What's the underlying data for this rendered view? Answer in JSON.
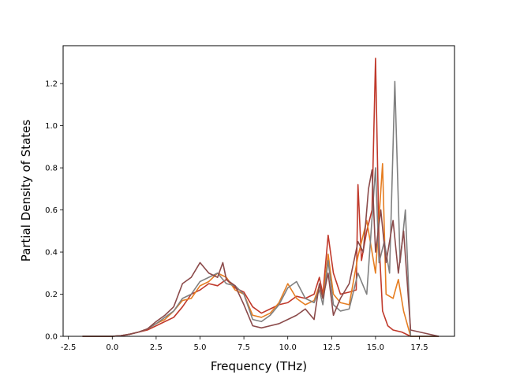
{
  "chart_data": {
    "type": "line",
    "title": "",
    "xlabel": "Frequency (THz)",
    "ylabel": "Partial Density of States",
    "xlim": [
      -2.8,
      19.5
    ],
    "ylim": [
      0.0,
      1.38
    ],
    "xticks": [
      -2.5,
      0.0,
      2.5,
      5.0,
      7.5,
      10.0,
      12.5,
      15.0,
      17.5
    ],
    "yticks": [
      0.0,
      0.2,
      0.4,
      0.6,
      0.8,
      1.0,
      1.2
    ],
    "grid": false,
    "legend": "none",
    "series": [
      {
        "color": "#c0392b",
        "points": [
          [
            -1.7,
            0
          ],
          [
            0,
            0
          ],
          [
            0.5,
            0.003
          ],
          [
            1,
            0.01
          ],
          [
            1.5,
            0.02
          ],
          [
            2,
            0.03
          ],
          [
            2.5,
            0.05
          ],
          [
            3,
            0.07
          ],
          [
            3.5,
            0.09
          ],
          [
            4,
            0.14
          ],
          [
            4.5,
            0.2
          ],
          [
            5,
            0.22
          ],
          [
            5.5,
            0.25
          ],
          [
            6,
            0.24
          ],
          [
            6.5,
            0.27
          ],
          [
            7,
            0.23
          ],
          [
            7.5,
            0.21
          ],
          [
            8,
            0.14
          ],
          [
            8.5,
            0.11
          ],
          [
            9,
            0.13
          ],
          [
            9.5,
            0.15
          ],
          [
            10,
            0.16
          ],
          [
            10.5,
            0.19
          ],
          [
            11,
            0.18
          ],
          [
            11.5,
            0.2
          ],
          [
            11.8,
            0.28
          ],
          [
            12,
            0.2
          ],
          [
            12.3,
            0.48
          ],
          [
            12.6,
            0.3
          ],
          [
            13,
            0.2
          ],
          [
            13.5,
            0.21
          ],
          [
            13.9,
            0.22
          ],
          [
            14,
            0.72
          ],
          [
            14.2,
            0.36
          ],
          [
            14.5,
            0.5
          ],
          [
            14.8,
            0.6
          ],
          [
            15,
            1.32
          ],
          [
            15.2,
            0.45
          ],
          [
            15.4,
            0.12
          ],
          [
            15.7,
            0.05
          ],
          [
            16,
            0.03
          ],
          [
            16.5,
            0.02
          ],
          [
            17,
            0
          ],
          [
            18.6,
            0
          ]
        ]
      },
      {
        "color": "#e67e22",
        "points": [
          [
            -1.7,
            0
          ],
          [
            0,
            0
          ],
          [
            0.5,
            0.003
          ],
          [
            1,
            0.01
          ],
          [
            1.5,
            0.02
          ],
          [
            2,
            0.035
          ],
          [
            2.5,
            0.06
          ],
          [
            3,
            0.08
          ],
          [
            3.5,
            0.12
          ],
          [
            4,
            0.17
          ],
          [
            4.5,
            0.18
          ],
          [
            5,
            0.24
          ],
          [
            5.5,
            0.26
          ],
          [
            6,
            0.3
          ],
          [
            6.5,
            0.28
          ],
          [
            7,
            0.22
          ],
          [
            7.5,
            0.2
          ],
          [
            8,
            0.1
          ],
          [
            8.5,
            0.09
          ],
          [
            9,
            0.11
          ],
          [
            9.5,
            0.16
          ],
          [
            10,
            0.25
          ],
          [
            10.5,
            0.18
          ],
          [
            11,
            0.15
          ],
          [
            11.5,
            0.17
          ],
          [
            11.8,
            0.24
          ],
          [
            12,
            0.18
          ],
          [
            12.3,
            0.39
          ],
          [
            12.6,
            0.2
          ],
          [
            13,
            0.16
          ],
          [
            13.5,
            0.15
          ],
          [
            14,
            0.38
          ],
          [
            14.5,
            0.55
          ],
          [
            14.8,
            0.4
          ],
          [
            15,
            0.3
          ],
          [
            15.4,
            0.82
          ],
          [
            15.6,
            0.2
          ],
          [
            16,
            0.18
          ],
          [
            16.3,
            0.27
          ],
          [
            16.6,
            0.12
          ],
          [
            17,
            0
          ],
          [
            18.6,
            0
          ]
        ]
      },
      {
        "color": "#808080",
        "points": [
          [
            -1.7,
            0
          ],
          [
            0,
            0
          ],
          [
            0.5,
            0.003
          ],
          [
            1,
            0.01
          ],
          [
            1.5,
            0.02
          ],
          [
            2,
            0.035
          ],
          [
            2.5,
            0.06
          ],
          [
            3,
            0.09
          ],
          [
            3.5,
            0.12
          ],
          [
            4,
            0.18
          ],
          [
            4.5,
            0.2
          ],
          [
            5,
            0.26
          ],
          [
            5.5,
            0.28
          ],
          [
            6,
            0.3
          ],
          [
            6.5,
            0.25
          ],
          [
            7,
            0.24
          ],
          [
            7.5,
            0.2
          ],
          [
            8,
            0.08
          ],
          [
            8.5,
            0.07
          ],
          [
            9,
            0.1
          ],
          [
            9.5,
            0.15
          ],
          [
            10,
            0.23
          ],
          [
            10.5,
            0.26
          ],
          [
            11,
            0.18
          ],
          [
            11.5,
            0.16
          ],
          [
            11.8,
            0.22
          ],
          [
            12,
            0.15
          ],
          [
            12.3,
            0.36
          ],
          [
            12.6,
            0.15
          ],
          [
            13,
            0.12
          ],
          [
            13.5,
            0.13
          ],
          [
            14,
            0.3
          ],
          [
            14.5,
            0.2
          ],
          [
            15,
            0.8
          ],
          [
            15.2,
            0.35
          ],
          [
            15.5,
            0.45
          ],
          [
            15.8,
            0.3
          ],
          [
            16.1,
            1.21
          ],
          [
            16.4,
            0.35
          ],
          [
            16.7,
            0.6
          ],
          [
            17,
            0
          ],
          [
            18.6,
            0
          ]
        ]
      },
      {
        "color": "#8b4a4a",
        "points": [
          [
            -1.7,
            0
          ],
          [
            0,
            0
          ],
          [
            0.5,
            0.003
          ],
          [
            1,
            0.01
          ],
          [
            1.5,
            0.02
          ],
          [
            2,
            0.035
          ],
          [
            2.5,
            0.07
          ],
          [
            3,
            0.1
          ],
          [
            3.5,
            0.14
          ],
          [
            4,
            0.25
          ],
          [
            4.5,
            0.28
          ],
          [
            5,
            0.35
          ],
          [
            5.5,
            0.3
          ],
          [
            6,
            0.28
          ],
          [
            6.3,
            0.35
          ],
          [
            6.5,
            0.27
          ],
          [
            7,
            0.24
          ],
          [
            7.5,
            0.15
          ],
          [
            8,
            0.05
          ],
          [
            8.5,
            0.04
          ],
          [
            9,
            0.05
          ],
          [
            9.5,
            0.06
          ],
          [
            10,
            0.08
          ],
          [
            10.5,
            0.1
          ],
          [
            11,
            0.13
          ],
          [
            11.5,
            0.08
          ],
          [
            11.8,
            0.25
          ],
          [
            12,
            0.18
          ],
          [
            12.3,
            0.3
          ],
          [
            12.6,
            0.1
          ],
          [
            13,
            0.18
          ],
          [
            13.5,
            0.25
          ],
          [
            14,
            0.45
          ],
          [
            14.3,
            0.4
          ],
          [
            14.6,
            0.7
          ],
          [
            14.8,
            0.79
          ],
          [
            15,
            0.4
          ],
          [
            15.3,
            0.6
          ],
          [
            15.6,
            0.35
          ],
          [
            16,
            0.55
          ],
          [
            16.3,
            0.3
          ],
          [
            16.6,
            0.5
          ],
          [
            17,
            0.03
          ],
          [
            18.6,
            0
          ]
        ]
      }
    ]
  }
}
